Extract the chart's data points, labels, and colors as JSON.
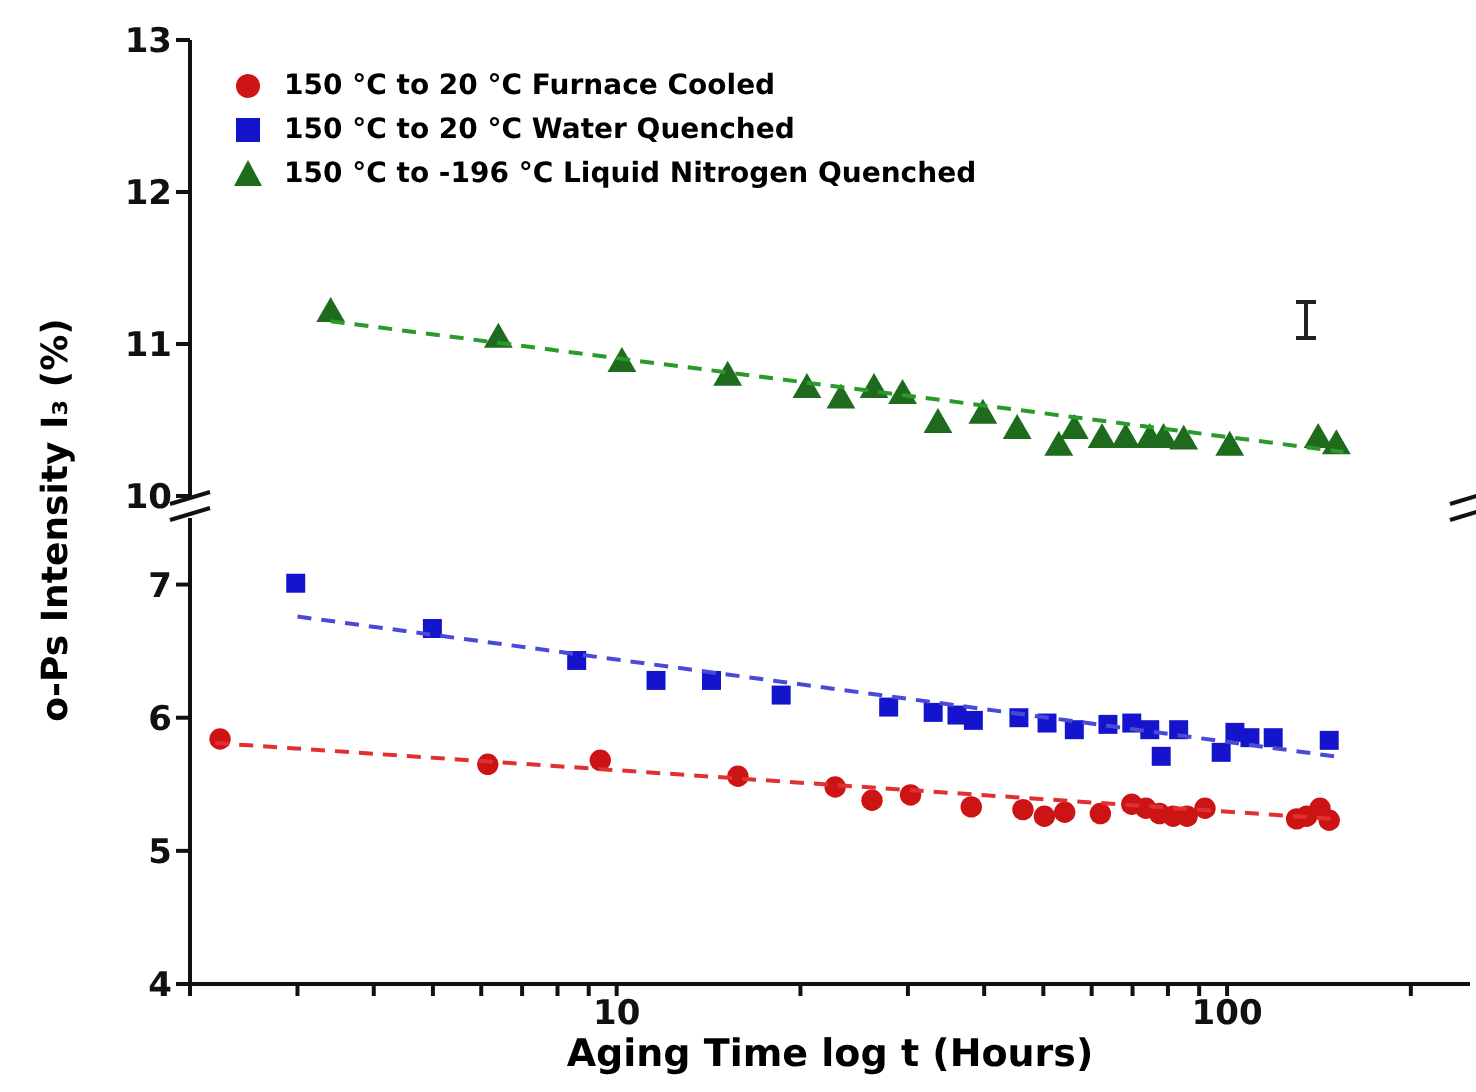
{
  "chart_data": [
    {
      "type": "scatter",
      "ylabel": "o-Ps Intensity I₃ (%)",
      "log": "x",
      "xlim": [
        2,
        250
      ],
      "ylim": [
        10,
        13
      ],
      "yticks": [
        10,
        11,
        12,
        13
      ],
      "tick_labels": "y",
      "legend": "top left",
      "series": [
        {
          "name": "150 °C to -196 °C Liquid Nitrogen Quenched",
          "color": "#1e6b1e",
          "marker": "triangle",
          "x": [
            3.4,
            6.4,
            10.2,
            15.2,
            20.5,
            23.3,
            26.4,
            29.4,
            33.6,
            39.8,
            45.3,
            53,
            56.2,
            62.4,
            68.2,
            74.7,
            78.7,
            84.9,
            101,
            141,
            151
          ],
          "values": [
            11.2,
            11.03,
            10.87,
            10.78,
            10.7,
            10.63,
            10.7,
            10.66,
            10.47,
            10.53,
            10.43,
            10.32,
            10.43,
            10.37,
            10.37,
            10.37,
            10.37,
            10.36,
            10.32,
            10.37,
            10.33
          ]
        },
        {
          "type": "line",
          "color": "#2a9a2a",
          "line_style": "dashed",
          "marker": "none",
          "x": [
            3.4,
            155
          ],
          "values": [
            11.15,
            10.29
          ]
        }
      ]
    },
    {
      "type": "scatter",
      "xlabel": "Aging Time log t (Hours)",
      "legend": "top left",
      "log": "x",
      "xlim": [
        2,
        250
      ],
      "xticks": [
        {
          "value": 2,
          "label": null
        },
        {
          "value": 3,
          "label": null
        },
        {
          "value": 4,
          "label": null
        },
        {
          "value": 5,
          "label": null
        },
        {
          "value": 6,
          "label": null
        },
        {
          "value": 7,
          "label": null
        },
        {
          "value": 8,
          "label": null
        },
        {
          "value": 9,
          "label": null
        },
        10,
        {
          "value": 20,
          "label": null
        },
        {
          "value": 30,
          "label": null
        },
        {
          "value": 40,
          "label": null
        },
        {
          "value": 50,
          "label": null
        },
        {
          "value": 60,
          "label": null
        },
        {
          "value": 70,
          "label": null
        },
        {
          "value": 80,
          "label": null
        },
        {
          "value": 90,
          "label": null
        },
        100,
        {
          "value": 200,
          "label": null
        }
      ],
      "ylim": [
        4,
        7.5
      ],
      "yticks": [
        4,
        5,
        6,
        7
      ],
      "series": [
        {
          "name": "150 °C to 20 °C Furnace Cooled",
          "color": "#cc1414",
          "marker": "circle",
          "x": [
            2.24,
            6.15,
            9.4,
            15.8,
            22.8,
            26.2,
            30.3,
            38.1,
            46.3,
            50.2,
            54.2,
            62,
            69.8,
            73.6,
            77.5,
            81.6,
            86,
            92,
            130,
            135,
            142,
            147
          ],
          "values": [
            5.84,
            5.65,
            5.68,
            5.56,
            5.48,
            5.38,
            5.42,
            5.33,
            5.31,
            5.26,
            5.29,
            5.28,
            5.35,
            5.32,
            5.28,
            5.26,
            5.26,
            5.32,
            5.24,
            5.26,
            5.32,
            5.23
          ]
        },
        {
          "name": "150 °C to 20 °C Water Quenched",
          "color": "#1414cc",
          "marker": "square",
          "x": [
            2.98,
            4.99,
            8.6,
            11.6,
            14.3,
            18.6,
            27.9,
            33,
            36.1,
            38.4,
            45.6,
            50.7,
            56.2,
            63.8,
            69.8,
            74.7,
            78,
            83.3,
            97.8,
            103,
            109,
            119,
            147
          ],
          "values": [
            7.01,
            6.67,
            6.43,
            6.28,
            6.28,
            6.17,
            6.08,
            6.04,
            6.02,
            5.98,
            6.0,
            5.96,
            5.91,
            5.95,
            5.96,
            5.91,
            5.71,
            5.91,
            5.74,
            5.89,
            5.85,
            5.85,
            5.83
          ]
        },
        {
          "type": "line",
          "color": "#e03030",
          "line_style": "dashed",
          "marker": "none",
          "x": [
            2.2,
            150
          ],
          "values": [
            5.81,
            5.24
          ]
        },
        {
          "type": "line",
          "color": "#4a4ad8",
          "line_style": "dashed",
          "marker": "none",
          "x": [
            3,
            150
          ],
          "values": [
            6.76,
            5.71
          ]
        }
      ]
    }
  ]
}
